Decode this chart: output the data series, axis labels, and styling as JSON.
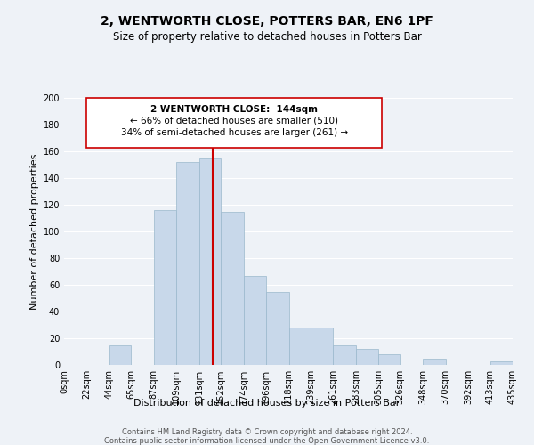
{
  "title": "2, WENTWORTH CLOSE, POTTERS BAR, EN6 1PF",
  "subtitle": "Size of property relative to detached houses in Potters Bar",
  "xlabel": "Distribution of detached houses by size in Potters Bar",
  "ylabel": "Number of detached properties",
  "bin_labels": [
    "0sqm",
    "22sqm",
    "44sqm",
    "65sqm",
    "87sqm",
    "109sqm",
    "131sqm",
    "152sqm",
    "174sqm",
    "196sqm",
    "218sqm",
    "239sqm",
    "261sqm",
    "283sqm",
    "305sqm",
    "326sqm",
    "348sqm",
    "370sqm",
    "392sqm",
    "413sqm",
    "435sqm"
  ],
  "bin_edges": [
    0,
    22,
    44,
    65,
    87,
    109,
    131,
    152,
    174,
    196,
    218,
    239,
    261,
    283,
    305,
    326,
    348,
    370,
    392,
    413,
    435
  ],
  "bar_heights": [
    0,
    0,
    15,
    0,
    116,
    152,
    155,
    115,
    67,
    55,
    28,
    28,
    15,
    12,
    8,
    0,
    5,
    0,
    0,
    3,
    0
  ],
  "bar_color": "#c8d8ea",
  "bar_edgecolor": "#9ab8cc",
  "vline_x": 144,
  "vline_color": "#cc0000",
  "annotation_title": "2 WENTWORTH CLOSE:  144sqm",
  "annotation_line1": "← 66% of detached houses are smaller (510)",
  "annotation_line2": "34% of semi-detached houses are larger (261) →",
  "annotation_box_facecolor": "#ffffff",
  "annotation_box_edgecolor": "#cc0000",
  "ylim": [
    0,
    200
  ],
  "yticks": [
    0,
    20,
    40,
    60,
    80,
    100,
    120,
    140,
    160,
    180,
    200
  ],
  "footer_line1": "Contains HM Land Registry data © Crown copyright and database right 2024.",
  "footer_line2": "Contains public sector information licensed under the Open Government Licence v3.0.",
  "bg_color": "#eef2f7",
  "plot_bg_color": "#eef2f7",
  "title_fontsize": 10,
  "subtitle_fontsize": 8.5,
  "axis_label_fontsize": 8,
  "tick_fontsize": 7,
  "annotation_fontsize": 7.5,
  "footer_fontsize": 6
}
